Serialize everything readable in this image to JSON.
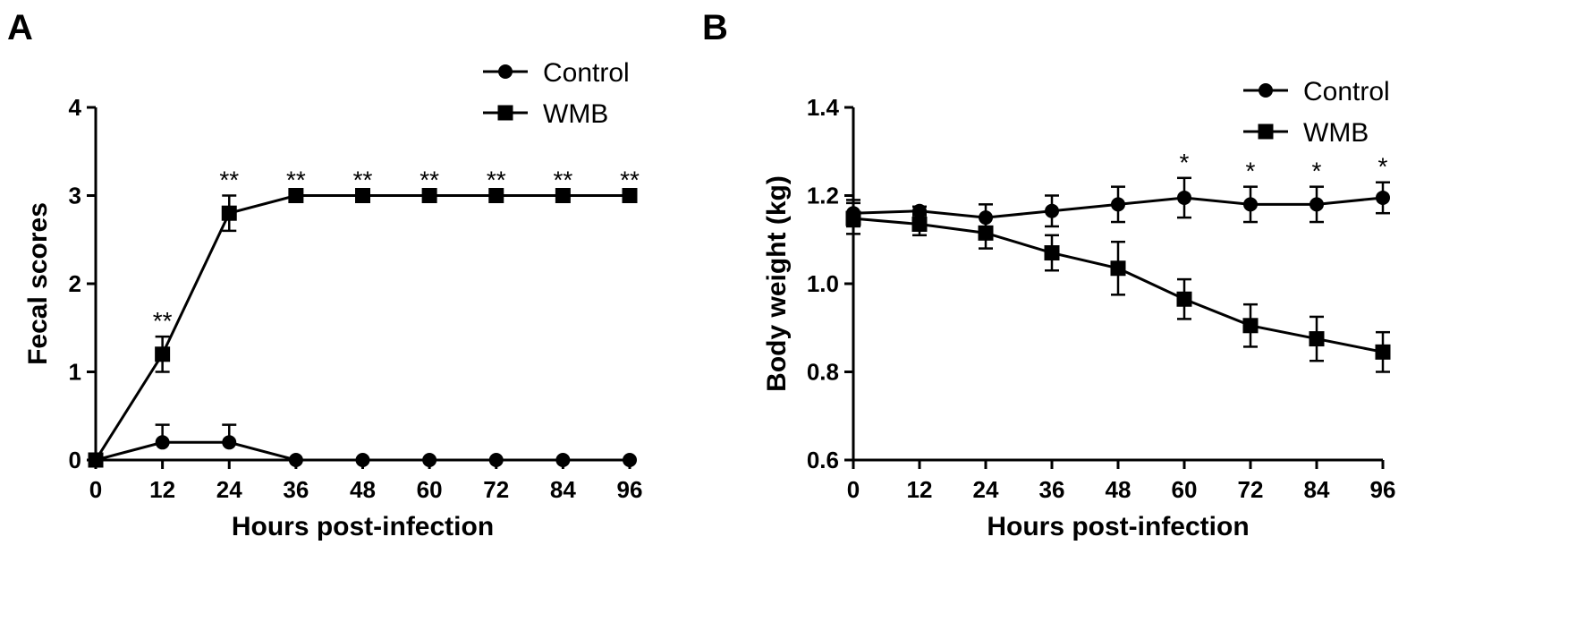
{
  "chart_data": [
    {
      "type": "line",
      "panel": "A",
      "title": "",
      "xlabel": "Hours post-infection",
      "ylabel": "Fecal scores",
      "x": [
        0,
        12,
        24,
        36,
        48,
        60,
        72,
        84,
        96
      ],
      "xlim": [
        0,
        96
      ],
      "ylim": [
        0,
        4
      ],
      "xticks": [
        "0",
        "12",
        "24",
        "36",
        "48",
        "60",
        "72",
        "84",
        "96"
      ],
      "yticks": [
        "0",
        "1",
        "2",
        "3",
        "4"
      ],
      "xtick_values": [
        0,
        12,
        24,
        36,
        48,
        60,
        72,
        84,
        96
      ],
      "ytick_values": [
        0,
        1,
        2,
        3,
        4
      ],
      "legend_position": "top-right",
      "series": [
        {
          "name": "Control",
          "marker": "circle",
          "values": [
            0,
            0.2,
            0.2,
            0,
            0,
            0,
            0,
            0,
            0
          ],
          "err_up": [
            0,
            0.2,
            0.2,
            0,
            0,
            0,
            0,
            0,
            0
          ],
          "err_down": [
            0,
            0,
            0,
            0,
            0,
            0,
            0,
            0,
            0
          ]
        },
        {
          "name": "WMB",
          "marker": "square",
          "values": [
            0,
            1.2,
            2.8,
            3,
            3,
            3,
            3,
            3,
            3
          ],
          "err_up": [
            0,
            0.2,
            0.2,
            0,
            0,
            0,
            0,
            0,
            0
          ],
          "err_down": [
            0,
            0.2,
            0.2,
            0,
            0,
            0,
            0,
            0,
            0
          ]
        }
      ],
      "annotations": [
        {
          "x": 12,
          "y": 1.4,
          "text": "**"
        },
        {
          "x": 24,
          "y": 3.0,
          "text": "**"
        },
        {
          "x": 36,
          "y": 3.0,
          "text": "**"
        },
        {
          "x": 48,
          "y": 3.0,
          "text": "**"
        },
        {
          "x": 60,
          "y": 3.0,
          "text": "**"
        },
        {
          "x": 72,
          "y": 3.0,
          "text": "**"
        },
        {
          "x": 84,
          "y": 3.0,
          "text": "**"
        },
        {
          "x": 96,
          "y": 3.0,
          "text": "**"
        }
      ]
    },
    {
      "type": "line",
      "panel": "B",
      "title": "",
      "xlabel": "Hours post-infection",
      "ylabel": "Body weight (kg)",
      "x": [
        0,
        12,
        24,
        36,
        48,
        60,
        72,
        84,
        96
      ],
      "xlim": [
        0,
        96
      ],
      "ylim": [
        0.6,
        1.4
      ],
      "xticks": [
        "0",
        "12",
        "24",
        "36",
        "48",
        "60",
        "72",
        "84",
        "96"
      ],
      "yticks": [
        "0.6",
        "0.8",
        "1.0",
        "1.2",
        "1.4"
      ],
      "xtick_values": [
        0,
        12,
        24,
        36,
        48,
        60,
        72,
        84,
        96
      ],
      "ytick_values": [
        0.6,
        0.8,
        1.0,
        1.2,
        1.4
      ],
      "legend_position": "top-right",
      "series": [
        {
          "name": "Control",
          "marker": "circle",
          "values": [
            1.16,
            1.165,
            1.15,
            1.165,
            1.18,
            1.195,
            1.18,
            1.18,
            1.195
          ],
          "err_up": [
            0.03,
            0.01,
            0.03,
            0.035,
            0.04,
            0.045,
            0.04,
            0.04,
            0.035
          ],
          "err_down": [
            0.03,
            0.01,
            0.03,
            0.035,
            0.04,
            0.045,
            0.04,
            0.04,
            0.035
          ]
        },
        {
          "name": "WMB",
          "marker": "square",
          "values": [
            1.148,
            1.135,
            1.115,
            1.07,
            1.035,
            0.965,
            0.905,
            0.875,
            0.845
          ],
          "err_up": [
            0.035,
            0.025,
            0.035,
            0.04,
            0.06,
            0.045,
            0.048,
            0.05,
            0.045
          ],
          "err_down": [
            0.035,
            0.025,
            0.035,
            0.04,
            0.06,
            0.045,
            0.048,
            0.05,
            0.045
          ]
        }
      ],
      "annotations": [
        {
          "x": 60,
          "y": 1.24,
          "text": "*"
        },
        {
          "x": 72,
          "y": 1.22,
          "text": "*"
        },
        {
          "x": 84,
          "y": 1.22,
          "text": "*"
        },
        {
          "x": 96,
          "y": 1.23,
          "text": "*"
        }
      ]
    }
  ]
}
